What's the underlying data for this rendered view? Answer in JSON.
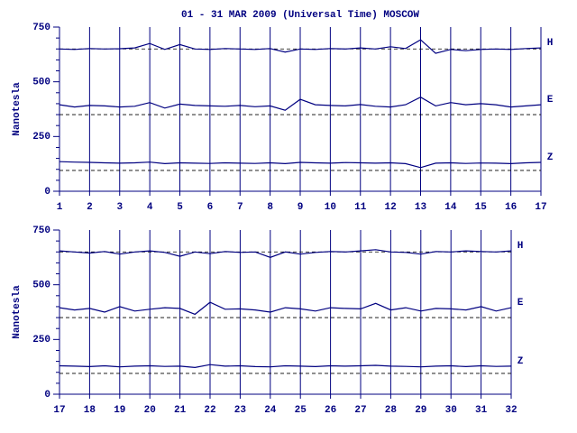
{
  "chart_data": [
    {
      "type": "line",
      "title": "01 - 31 MAR 2009 (Universal Time) MOSCOW",
      "y_label": "Nanotesla",
      "x": [
        1,
        1.5,
        2,
        2.5,
        3,
        3.5,
        4,
        4.5,
        5,
        5.5,
        6,
        6.5,
        7,
        7.5,
        8,
        8.5,
        9,
        9.5,
        10,
        10.5,
        11,
        11.5,
        12,
        12.5,
        13,
        13.5,
        14,
        14.5,
        15,
        15.5,
        16,
        16.5,
        17
      ],
      "xlim": [
        1,
        17
      ],
      "xticks": [
        1,
        2,
        3,
        4,
        5,
        6,
        7,
        8,
        9,
        10,
        11,
        12,
        13,
        14,
        15,
        16,
        17
      ],
      "ylim": [
        0,
        750
      ],
      "yticks": [
        0,
        250,
        500,
        750
      ],
      "yminorticks": [
        50,
        100,
        150,
        200,
        300,
        350,
        400,
        450,
        550,
        600,
        650,
        700
      ],
      "grid": true,
      "series": [
        {
          "name": "H",
          "color": "#000080",
          "baseline": 650,
          "values": [
            650,
            648,
            652,
            650,
            651,
            655,
            675,
            648,
            670,
            650,
            648,
            652,
            650,
            648,
            652,
            636,
            650,
            648,
            652,
            650,
            655,
            650,
            660,
            652,
            692,
            630,
            648,
            642,
            648,
            650,
            648,
            652,
            655
          ]
        },
        {
          "name": "E",
          "color": "#000080",
          "baseline": 350,
          "values": [
            395,
            385,
            392,
            390,
            385,
            388,
            405,
            380,
            398,
            392,
            390,
            388,
            392,
            386,
            390,
            370,
            420,
            395,
            392,
            390,
            396,
            388,
            385,
            395,
            430,
            390,
            405,
            395,
            400,
            395,
            385,
            390,
            395
          ]
        },
        {
          "name": "Z",
          "color": "#000080",
          "baseline": 95,
          "values": [
            135,
            133,
            132,
            130,
            128,
            130,
            133,
            126,
            130,
            128,
            127,
            130,
            128,
            127,
            130,
            126,
            132,
            130,
            128,
            131,
            130,
            128,
            130,
            126,
            108,
            128,
            130,
            127,
            129,
            128,
            126,
            130,
            132
          ]
        }
      ]
    },
    {
      "type": "line",
      "y_label": "Nanotesla",
      "x": [
        17,
        17.5,
        18,
        18.5,
        19,
        19.5,
        20,
        20.5,
        21,
        21.5,
        22,
        22.5,
        23,
        23.5,
        24,
        24.5,
        25,
        25.5,
        26,
        26.5,
        27,
        27.5,
        28,
        28.5,
        29,
        29.5,
        30,
        30.5,
        31,
        31.5,
        32
      ],
      "xlim": [
        17,
        32
      ],
      "xticks": [
        17,
        18,
        19,
        20,
        21,
        22,
        23,
        24,
        25,
        26,
        27,
        28,
        29,
        30,
        31,
        32
      ],
      "ylim": [
        0,
        750
      ],
      "yticks": [
        0,
        250,
        500,
        750
      ],
      "yminorticks": [
        50,
        100,
        150,
        200,
        300,
        350,
        400,
        450,
        550,
        600,
        650,
        700
      ],
      "grid": true,
      "series": [
        {
          "name": "H",
          "color": "#000080",
          "baseline": 650,
          "values": [
            655,
            650,
            645,
            652,
            640,
            650,
            655,
            648,
            630,
            650,
            642,
            652,
            648,
            650,
            625,
            650,
            640,
            648,
            652,
            650,
            655,
            660,
            650,
            648,
            640,
            652,
            650,
            655,
            652,
            650,
            655
          ]
        },
        {
          "name": "E",
          "color": "#000080",
          "baseline": 350,
          "values": [
            395,
            385,
            392,
            375,
            400,
            380,
            388,
            395,
            392,
            365,
            420,
            388,
            390,
            385,
            375,
            395,
            390,
            380,
            395,
            392,
            390,
            415,
            385,
            395,
            380,
            392,
            390,
            385,
            400,
            380,
            395
          ]
        },
        {
          "name": "Z",
          "color": "#000080",
          "baseline": 95,
          "values": [
            130,
            128,
            126,
            130,
            125,
            128,
            130,
            127,
            128,
            122,
            135,
            128,
            130,
            126,
            125,
            130,
            128,
            126,
            130,
            128,
            130,
            132,
            128,
            127,
            125,
            128,
            130,
            126,
            130,
            127,
            128
          ]
        }
      ]
    }
  ]
}
